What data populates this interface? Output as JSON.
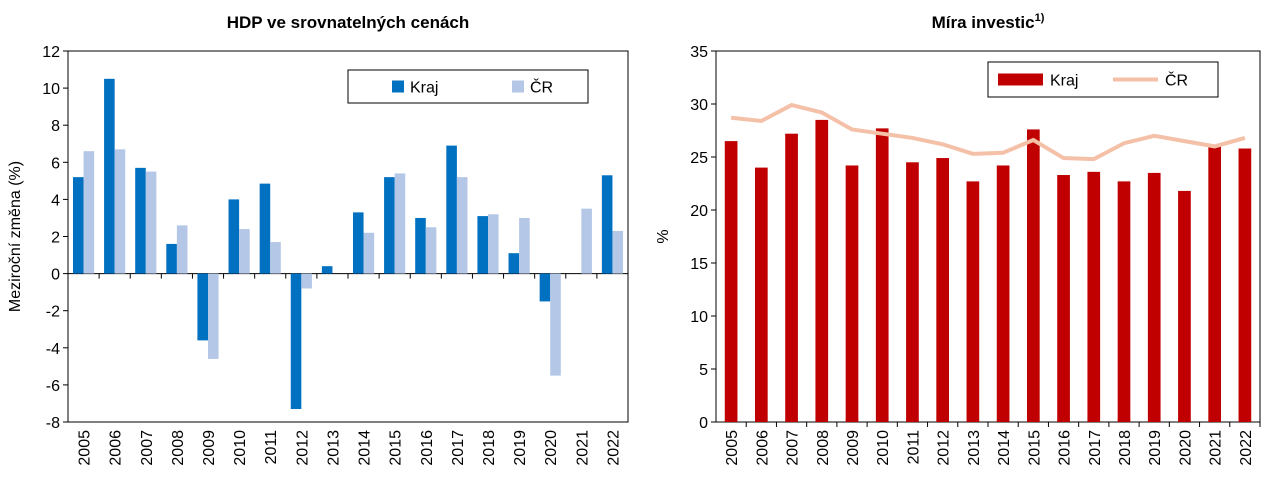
{
  "chart_data": [
    {
      "type": "bar",
      "title": "HDP ve srovnatelných cenách",
      "ylabel": "Meziroční změna (%)",
      "categories": [
        "2005",
        "2006",
        "2007",
        "2008",
        "2009",
        "2010",
        "2011",
        "2012",
        "2013",
        "2014",
        "2015",
        "2016",
        "2017",
        "2018",
        "2019",
        "2020",
        "2021",
        "2022"
      ],
      "series": [
        {
          "name": "Kraj",
          "color": "#0070c0",
          "values": [
            5.2,
            10.5,
            5.7,
            1.6,
            -3.6,
            4.0,
            4.85,
            -7.3,
            0.4,
            3.3,
            5.2,
            3.0,
            6.9,
            3.1,
            1.1,
            -1.5,
            null,
            5.3
          ]
        },
        {
          "name": "ČR",
          "color": "#b4c7e7",
          "values": [
            6.6,
            6.7,
            5.5,
            2.6,
            -4.6,
            2.4,
            1.7,
            -0.8,
            null,
            2.2,
            5.4,
            2.5,
            5.2,
            3.2,
            3.0,
            -5.5,
            3.5,
            2.3
          ]
        }
      ],
      "ylim": [
        -8,
        12
      ],
      "yticks": [
        -8,
        -6,
        -4,
        -2,
        0,
        2,
        4,
        6,
        8,
        10,
        12
      ]
    },
    {
      "type": "combo",
      "title": "Míra investic",
      "title_note": "1)",
      "ylabel": "%",
      "categories": [
        "2005",
        "2006",
        "2007",
        "2008",
        "2009",
        "2010",
        "2011",
        "2012",
        "2013",
        "2014",
        "2015",
        "2016",
        "2017",
        "2018",
        "2019",
        "2020",
        "2021",
        "2022"
      ],
      "series": [
        {
          "name": "Kraj",
          "mark": "bar",
          "color": "#c00000",
          "values": [
            26.5,
            24.0,
            27.2,
            28.5,
            24.2,
            27.7,
            24.5,
            24.9,
            22.7,
            24.2,
            27.6,
            23.3,
            23.6,
            22.7,
            23.5,
            21.8,
            26.0,
            25.8
          ]
        },
        {
          "name": "ČR",
          "mark": "line",
          "color": "#f4c1a8",
          "values": [
            28.7,
            28.4,
            29.9,
            29.2,
            27.6,
            27.2,
            26.8,
            26.2,
            25.3,
            25.4,
            26.6,
            24.9,
            24.8,
            26.3,
            27.0,
            26.5,
            26.0,
            26.8
          ]
        }
      ],
      "ylim": [
        0,
        35
      ],
      "yticks": [
        0,
        5,
        10,
        15,
        20,
        25,
        30,
        35
      ]
    }
  ]
}
